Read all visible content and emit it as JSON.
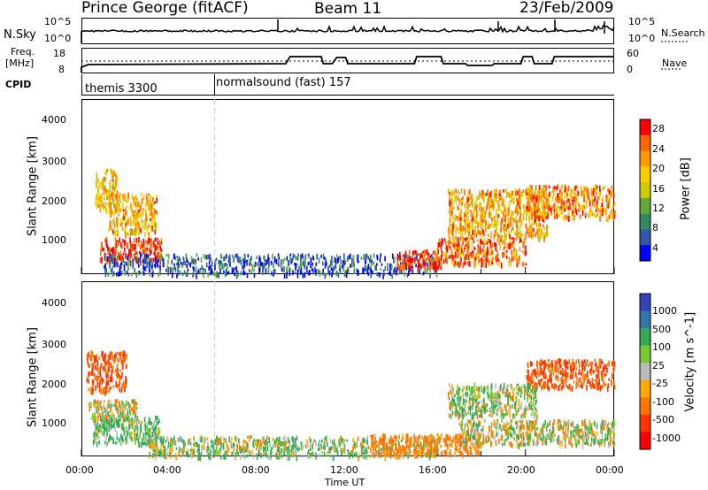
{
  "header": {
    "station": "Prince George (fitACF)",
    "beam": "Beam 11",
    "date": "23/Feb/2009"
  },
  "panels": {
    "nsky": {
      "left_label": "N.Sky",
      "right_label": "N.Search",
      "left_ticks": [
        "10^5",
        "10^0"
      ],
      "right_ticks": [
        "10^5",
        "10^0"
      ]
    },
    "freq": {
      "left_label_line1": "Freq.",
      "left_label_line2": "[MHz]",
      "right_label": "Nave",
      "left_ticks": [
        "18",
        "8"
      ],
      "right_ticks": [
        "60",
        "0"
      ]
    },
    "cpid": {
      "label": "CPID",
      "segments": [
        {
          "text": "themis 3300"
        },
        {
          "text": "normalsound (fast) 157"
        }
      ]
    }
  },
  "chart_data": [
    {
      "type": "heatmap",
      "quantity": "Power",
      "ylabel": "Slant Range [km]",
      "yticks": [
        "4000",
        "3000",
        "2000",
        "1000"
      ],
      "ylim": [
        180,
        4500
      ],
      "colorbar_label": "Power [dB]",
      "colorbar_ticks": [
        "28",
        "24",
        "20",
        "16",
        "12",
        "8",
        "4"
      ],
      "colorbar_colors": [
        "#ff0000",
        "#ff6600",
        "#ff9900",
        "#ffcc00",
        "#cccc00",
        "#66aa33",
        "#338866",
        "#3355aa",
        "#0000ff"
      ],
      "features": [
        {
          "t_start_h": 0.6,
          "t_end_h": 1.6,
          "range_km": [
            1800,
            2800
          ],
          "level_db": 18
        },
        {
          "t_start_h": 1.2,
          "t_end_h": 3.4,
          "range_km": [
            1200,
            2200
          ],
          "level_db": 20
        },
        {
          "t_start_h": 0.8,
          "t_end_h": 3.6,
          "range_km": [
            550,
            1100
          ],
          "level_db": 28
        },
        {
          "t_start_h": 1.0,
          "t_end_h": 16.0,
          "range_km": [
            200,
            700
          ],
          "level_db": 4
        },
        {
          "t_start_h": 14.2,
          "t_end_h": 16.2,
          "range_km": [
            350,
            800
          ],
          "level_db": 28
        },
        {
          "t_start_h": 16.0,
          "t_end_h": 20.0,
          "range_km": [
            450,
            1100
          ],
          "level_db": 24
        },
        {
          "t_start_h": 16.5,
          "t_end_h": 21.0,
          "range_km": [
            1100,
            2300
          ],
          "level_db": 20
        },
        {
          "t_start_h": 20.0,
          "t_end_h": 24.0,
          "range_km": [
            1600,
            2400
          ],
          "level_db": 22
        }
      ]
    },
    {
      "type": "heatmap",
      "quantity": "Velocity",
      "ylabel": "Slant Range [km]",
      "yticks": [
        "4000",
        "3000",
        "2000",
        "1000"
      ],
      "ylim": [
        180,
        4500
      ],
      "colorbar_label": "Velocity [m s^-1]",
      "colorbar_ticks": [
        "1000",
        "500",
        "100",
        "25",
        "-25",
        "-100",
        "-500",
        "-1000"
      ],
      "colorbar_colors": [
        "#3344bb",
        "#3377aa",
        "#33aa55",
        "#77cc33",
        "#bbbbbb",
        "#ffaa00",
        "#ff7700",
        "#ff3300",
        "#ff0000"
      ],
      "features": [
        {
          "t_start_h": 0.2,
          "t_end_h": 2.0,
          "range_km": [
            1800,
            2800
          ],
          "velocity": -300
        },
        {
          "t_start_h": 0.3,
          "t_end_h": 2.5,
          "range_km": [
            1100,
            1600
          ],
          "velocity": 0
        },
        {
          "t_start_h": 0.5,
          "t_end_h": 3.5,
          "range_km": [
            500,
            1200
          ],
          "velocity": 100
        },
        {
          "t_start_h": 3.0,
          "t_end_h": 16.0,
          "range_km": [
            200,
            700
          ],
          "velocity": 50
        },
        {
          "t_start_h": 13.0,
          "t_end_h": 18.0,
          "range_km": [
            250,
            750
          ],
          "velocity": -150
        },
        {
          "t_start_h": 17.0,
          "t_end_h": 24.0,
          "range_km": [
            500,
            1100
          ],
          "velocity": 0
        },
        {
          "t_start_h": 20.0,
          "t_end_h": 24.0,
          "range_km": [
            1900,
            2600
          ],
          "velocity": -300
        },
        {
          "t_start_h": 16.5,
          "t_end_h": 20.5,
          "range_km": [
            1200,
            2000
          ],
          "velocity": 50
        }
      ]
    }
  ],
  "xaxis": {
    "label": "Time UT",
    "ticks": [
      "00:00",
      "04:00",
      "08:00",
      "12:00",
      "16:00",
      "20:00",
      "00:00"
    ],
    "range_h": [
      0,
      24
    ]
  },
  "cpid_change_h": 6.0
}
